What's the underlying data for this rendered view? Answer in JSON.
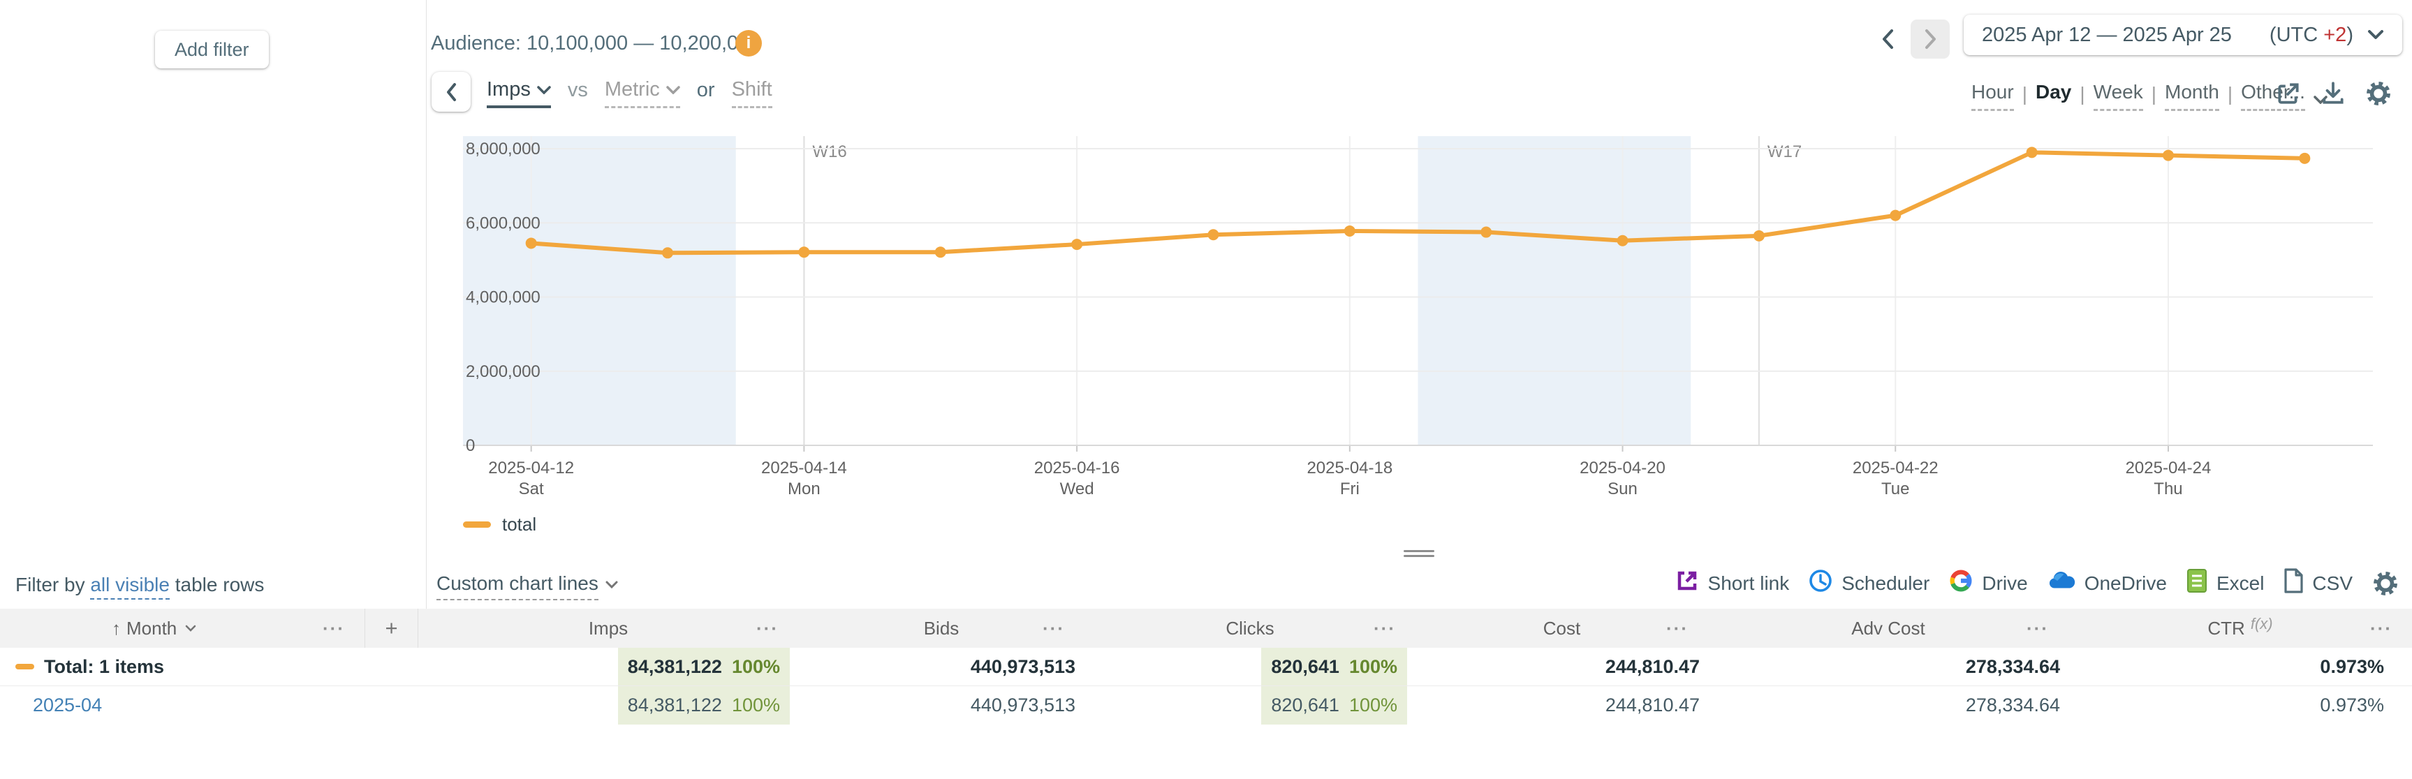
{
  "left_panel": {
    "add_filter_label": "Add filter"
  },
  "audience": {
    "label": "Audience: 10,100,000 — 10,200,000",
    "info_icon": "i"
  },
  "date_picker": {
    "range": "2025 Apr 12 — 2025 Apr 25",
    "utc_prefix": "(UTC ",
    "utc_offset": "+2",
    "utc_suffix": ")"
  },
  "series_controls": {
    "primary": "Imps",
    "vs": "vs",
    "metric": "Metric",
    "or": "or",
    "shift": "Shift"
  },
  "granularity": {
    "hour": "Hour",
    "day": "Day",
    "week": "Week",
    "month": "Month",
    "other": "Other...",
    "separator": "|",
    "selected": "Day"
  },
  "legend": {
    "total": "total"
  },
  "filter_bar": {
    "prefix": "Filter by ",
    "link": "all visible",
    "suffix": " table rows",
    "custom_chart_lines": "Custom chart lines"
  },
  "export_bar": {
    "short_link": "Short link",
    "scheduler": "Scheduler",
    "drive": "Drive",
    "onedrive": "OneDrive",
    "excel": "Excel",
    "csv": "CSV"
  },
  "table": {
    "header": {
      "sort_arrow": "↑",
      "month": "Month",
      "plus": "+",
      "imps": "Imps",
      "bids": "Bids",
      "clicks": "Clicks",
      "cost": "Cost",
      "adv_cost": "Adv Cost",
      "ctr": "CTR",
      "ctr_fx": "f(x)",
      "menu_dots": "···"
    },
    "total_row": {
      "label": "Total: 1 items",
      "imps": "84,381,122",
      "imps_pct": "100%",
      "bids": "440,973,513",
      "clicks": "820,641",
      "clicks_pct": "100%",
      "cost": "244,810.47",
      "adv_cost": "278,334.64",
      "ctr": "0.973%"
    },
    "rows": [
      {
        "month": "2025-04",
        "imps": "84,381,122",
        "imps_pct": "100%",
        "bids": "440,973,513",
        "clicks": "820,641",
        "clicks_pct": "100%",
        "cost": "244,810.47",
        "adv_cost": "278,334.64",
        "ctr": "0.973%"
      }
    ]
  },
  "chart_data": {
    "type": "line",
    "title": "",
    "x": [
      "2025-04-12",
      "2025-04-13",
      "2025-04-14",
      "2025-04-15",
      "2025-04-16",
      "2025-04-17",
      "2025-04-18",
      "2025-04-19",
      "2025-04-20",
      "2025-04-21",
      "2025-04-22",
      "2025-04-23",
      "2025-04-24",
      "2025-04-25"
    ],
    "weekdays": [
      "Sat",
      "Sun",
      "Mon",
      "Tue",
      "Wed",
      "Thu",
      "Fri",
      "Sat",
      "Sun",
      "Mon",
      "Tue",
      "Wed",
      "Thu",
      "Fri"
    ],
    "series": [
      {
        "name": "total",
        "color": "#f2a63c",
        "values": [
          5450000,
          5190000,
          5210000,
          5210000,
          5420000,
          5680000,
          5780000,
          5750000,
          5520000,
          5650000,
          6200000,
          7900000,
          7820000,
          7740000
        ]
      }
    ],
    "ylim": [
      0,
      8000000
    ],
    "y_ticks": [
      0,
      2000000,
      4000000,
      6000000,
      8000000
    ],
    "x_tick_every": 2,
    "week_markers": [
      {
        "label": "W16",
        "date": "2025-04-14"
      },
      {
        "label": "W17",
        "date": "2025-04-21"
      }
    ],
    "weekend_bands": [
      [
        "2025-04-12",
        "2025-04-13"
      ],
      [
        "2025-04-19",
        "2025-04-20"
      ]
    ],
    "grid": true,
    "legend_position": "bottom-left"
  }
}
